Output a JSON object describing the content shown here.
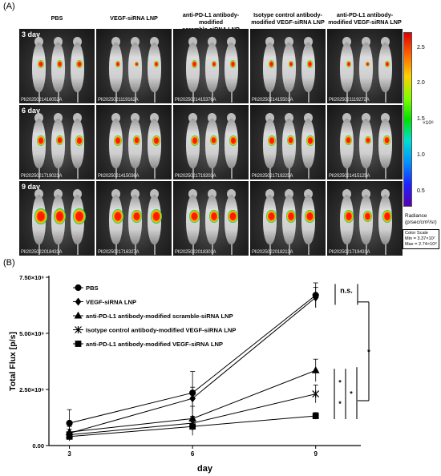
{
  "figure": {
    "panel_a_label": "(A)",
    "panel_b_label": "(B)"
  },
  "panel_a": {
    "columns": [
      {
        "line1": "PBS",
        "line2": ""
      },
      {
        "line1": "VEGF-siRNA LNP",
        "line2": ""
      },
      {
        "line1": "anti-PD-L1 antibody-modified",
        "line2": "scramble-siRNA LNP"
      },
      {
        "line1": "Isotype control antibody-",
        "line2": "modified VEGF-siRNA LNP"
      },
      {
        "line1": "anti-PD-L1 antibody-",
        "line2": "modified VEGF-siRNA LNP"
      }
    ],
    "rows": [
      {
        "day": "3 day",
        "ids": [
          "PII2025021416052A",
          "PII2025021119162A",
          "PII2025021415376A",
          "PII2025021415501A",
          "PII2025021119272A"
        ]
      },
      {
        "day": "6 day",
        "ids": [
          "PII2025021719023A",
          "PII2025021415036A",
          "PII2025021719203A",
          "PII2025021719225A",
          "PII2025021415125A"
        ]
      },
      {
        "day": "9 day",
        "ids": [
          "PII2025022018433A",
          "PII2025021716327A",
          "PII2025022018301A",
          "PII2025022018213A",
          "PII2025021719431A"
        ]
      }
    ],
    "colorbar": {
      "ticks": [
        "2.5",
        "2.0",
        "1.5",
        "1.0",
        "0.5"
      ],
      "exponent": "×10⁸",
      "radiance_title": "Radiance",
      "radiance_unit": "(p/sec/cm²/sr)",
      "scale_title": "Color Scale",
      "scale_min": "Min = 3.37×10⁷",
      "scale_max": "Max = 2.74×10⁸",
      "colors": [
        "#e00000",
        "#ff6000",
        "#ffd000",
        "#80ff00",
        "#00e000",
        "#00e0d0",
        "#0090ff",
        "#2020ff",
        "#5a00b0"
      ]
    }
  },
  "chart_data": {
    "type": "line",
    "xlabel": "day",
    "ylabel": "Total Flux [p/s]",
    "x": [
      3,
      6,
      9
    ],
    "xticks": [
      "3",
      "6",
      "9"
    ],
    "ylim": [
      0,
      7500000000
    ],
    "yticks": [
      {
        "value": 0,
        "label": "0.00"
      },
      {
        "value": 2500000000,
        "label": "2.50×10⁹"
      },
      {
        "value": 5000000000,
        "label": "5.00×10⁹"
      },
      {
        "value": 7500000000,
        "label": "7.50×10⁹"
      }
    ],
    "grid": false,
    "legend_position": "top-left",
    "series": [
      {
        "name": "PBS",
        "marker": "circle",
        "values": [
          1000000000,
          2350000000,
          6700000000
        ],
        "errors": [
          600000000,
          950000000,
          550000000
        ]
      },
      {
        "name": "VEGF-siRNA LNP",
        "marker": "diamond",
        "values": [
          550000000,
          2100000000,
          6600000000
        ],
        "errors": [
          300000000,
          500000000,
          450000000
        ]
      },
      {
        "name": "anti-PD-L1 antibody-modified scramble-siRNA LNP",
        "marker": "triangle",
        "values": [
          600000000,
          1200000000,
          3350000000
        ],
        "errors": [
          300000000,
          550000000,
          500000000
        ]
      },
      {
        "name": "Isotype control antibody-modified VEGF-siRNA LNP",
        "marker": "asterisk",
        "values": [
          480000000,
          1000000000,
          2300000000
        ],
        "errors": [
          250000000,
          300000000,
          400000000
        ]
      },
      {
        "name": "anti-PD-L1 antibody-modified VEGF-siRNA LNP",
        "marker": "square",
        "values": [
          400000000,
          850000000,
          1320000000
        ],
        "errors": [
          200000000,
          400000000,
          150000000
        ]
      }
    ],
    "annotations": [
      {
        "text": "n.s."
      },
      {
        "text": "*"
      },
      {
        "text": "*"
      },
      {
        "text": "*"
      },
      {
        "text": "*"
      }
    ]
  }
}
